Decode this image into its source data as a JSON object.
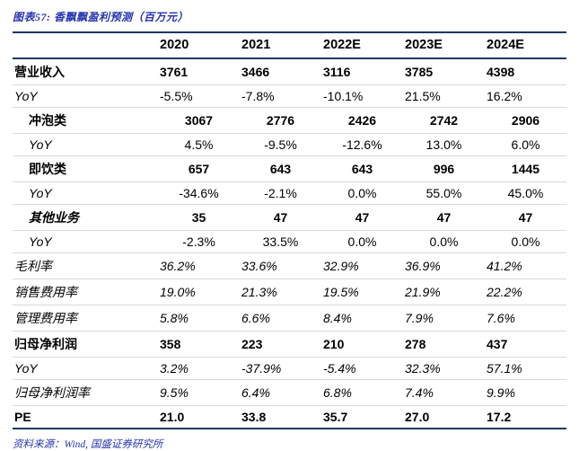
{
  "title": "图表57: 香飘飘盈利预测（百万元）",
  "source": "资料来源：Wind, 国盛证券研究所",
  "colors": {
    "rule_navy": "#1f3864",
    "text_blue": "#2433b0",
    "row_divider": "#d9d9d9"
  },
  "chart_data": {
    "type": "table",
    "title": "图表57: 香飘飘盈利预测（百万元）",
    "columns": [
      "",
      "2020",
      "2021",
      "2022E",
      "2023E",
      "2024E"
    ],
    "rows": [
      {
        "label": "营业收入",
        "indent": false,
        "label_style": "bold",
        "value_style": "bold",
        "align": "left",
        "values": [
          "3761",
          "3466",
          "3116",
          "3785",
          "4398"
        ]
      },
      {
        "label": "YoY",
        "indent": false,
        "label_style": "italic",
        "value_style": "normal",
        "align": "left",
        "values": [
          "-5.5%",
          "-7.8%",
          "-10.1%",
          "21.5%",
          "16.2%"
        ]
      },
      {
        "label": "冲泡类",
        "indent": true,
        "label_style": "bold",
        "value_style": "bold",
        "align": "center",
        "values": [
          "3067",
          "2776",
          "2426",
          "2742",
          "2906"
        ]
      },
      {
        "label": "YoY",
        "indent": true,
        "label_style": "italic",
        "value_style": "normal",
        "align": "center",
        "values": [
          "4.5%",
          "-9.5%",
          "-12.6%",
          "13.0%",
          "6.0%"
        ]
      },
      {
        "label": "即饮类",
        "indent": true,
        "label_style": "bold",
        "value_style": "bold",
        "align": "center",
        "values": [
          "657",
          "643",
          "643",
          "996",
          "1445"
        ]
      },
      {
        "label": "YoY",
        "indent": true,
        "label_style": "italic",
        "value_style": "normal",
        "align": "center",
        "values": [
          "-34.6%",
          "-2.1%",
          "0.0%",
          "55.0%",
          "45.0%"
        ]
      },
      {
        "label": "其他业务",
        "indent": true,
        "label_style": "bold-italic",
        "value_style": "bold",
        "align": "center",
        "values": [
          "35",
          "47",
          "47",
          "47",
          "47"
        ]
      },
      {
        "label": "YoY",
        "indent": true,
        "label_style": "italic",
        "value_style": "normal",
        "align": "center",
        "values": [
          "-2.3%",
          "33.5%",
          "0.0%",
          "0.0%",
          "0.0%"
        ]
      },
      {
        "label": "毛利率",
        "indent": false,
        "label_style": "italic",
        "value_style": "italic",
        "align": "left",
        "values": [
          "36.2%",
          "33.6%",
          "32.9%",
          "36.9%",
          "41.2%"
        ]
      },
      {
        "label": "销售费用率",
        "indent": false,
        "label_style": "italic",
        "value_style": "italic",
        "align": "left",
        "values": [
          "19.0%",
          "21.3%",
          "19.5%",
          "21.9%",
          "22.2%"
        ]
      },
      {
        "label": "管理费用率",
        "indent": false,
        "label_style": "italic",
        "value_style": "italic",
        "align": "left",
        "values": [
          "5.8%",
          "6.6%",
          "8.4%",
          "7.9%",
          "7.6%"
        ]
      },
      {
        "label": "归母净利润",
        "indent": false,
        "label_style": "bold",
        "value_style": "bold",
        "align": "left",
        "values": [
          "358",
          "223",
          "210",
          "278",
          "437"
        ]
      },
      {
        "label": "YoY",
        "indent": false,
        "label_style": "italic",
        "value_style": "italic",
        "align": "left",
        "values": [
          "3.2%",
          "-37.9%",
          "-5.4%",
          "32.3%",
          "57.1%"
        ]
      },
      {
        "label": "归母净利润率",
        "indent": false,
        "label_style": "italic",
        "value_style": "italic",
        "align": "left",
        "values": [
          "9.5%",
          "6.4%",
          "6.8%",
          "7.4%",
          "9.9%"
        ]
      },
      {
        "label": "PE",
        "indent": false,
        "label_style": "bold",
        "value_style": "bold",
        "align": "left",
        "values": [
          "21.0",
          "33.8",
          "35.7",
          "27.0",
          "17.2"
        ]
      }
    ]
  }
}
